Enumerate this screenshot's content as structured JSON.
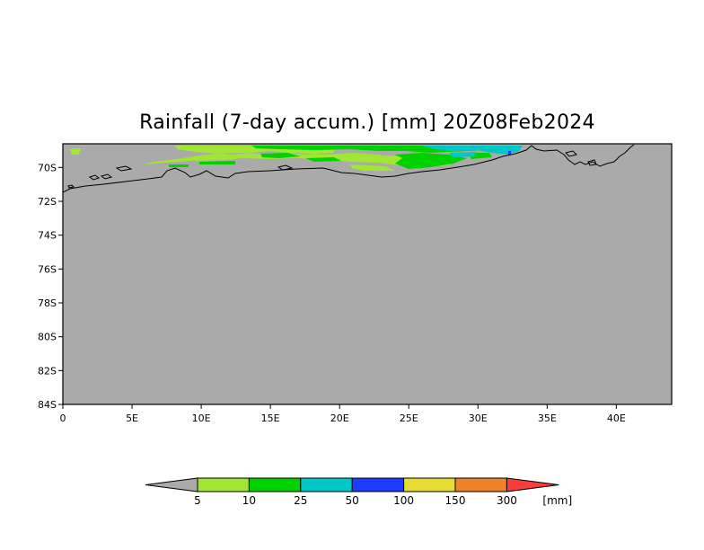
{
  "title": "Rainfall (7-day accum.) [mm] 20Z08Feb2024",
  "map": {
    "lon_range": [
      0,
      44
    ],
    "lat_range": [
      -84,
      -68.6
    ],
    "background_color": "#aaaaaa",
    "coastline_color": "#000000",
    "lat_ticks": [
      {
        "value": -70,
        "label": "70S"
      },
      {
        "value": -72,
        "label": "72S"
      },
      {
        "value": -74,
        "label": "74S"
      },
      {
        "value": -76,
        "label": "76S"
      },
      {
        "value": -78,
        "label": "78S"
      },
      {
        "value": -80,
        "label": "80S"
      },
      {
        "value": -82,
        "label": "82S"
      },
      {
        "value": -84,
        "label": "84S"
      }
    ],
    "lon_ticks": [
      {
        "value": 0,
        "label": "0"
      },
      {
        "value": 5,
        "label": "5E"
      },
      {
        "value": 10,
        "label": "10E"
      },
      {
        "value": 15,
        "label": "15E"
      },
      {
        "value": 20,
        "label": "20E"
      },
      {
        "value": 25,
        "label": "25E"
      },
      {
        "value": 30,
        "label": "30E"
      },
      {
        "value": 35,
        "label": "35E"
      },
      {
        "value": 40,
        "label": "40E"
      }
    ]
  },
  "colorbar": {
    "levels": [
      "5",
      "10",
      "25",
      "50",
      "100",
      "150",
      "300"
    ],
    "colors": [
      "#aaaaaa",
      "#a0e632",
      "#00d200",
      "#00c8c8",
      "#1e3cff",
      "#e6dc32",
      "#f08228",
      "#fa3c3c"
    ],
    "units": "[mm]"
  }
}
